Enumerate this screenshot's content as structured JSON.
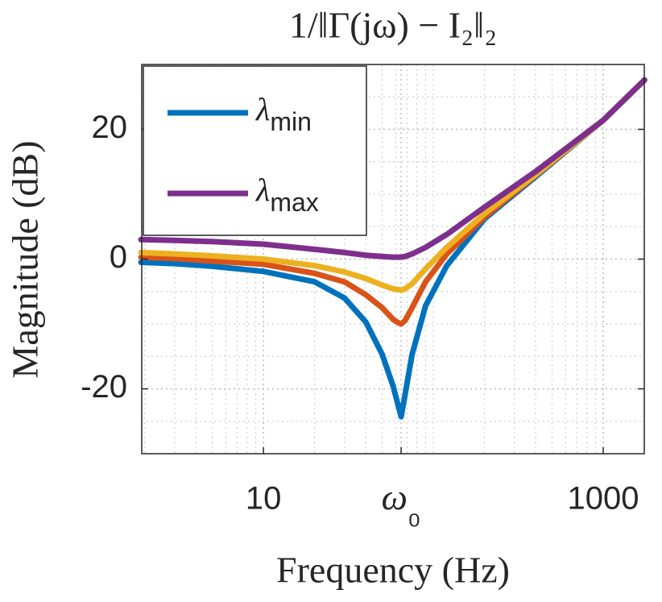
{
  "chart_data": {
    "type": "line",
    "title": "1/‖Γ(jω) − I₂‖₂",
    "xlabel": "Frequency (Hz)",
    "ylabel": "Magnitude (dB)",
    "xscale": "log",
    "grid": true,
    "legend": "upper left",
    "x": [
      1.9,
      3,
      5,
      10,
      20,
      30,
      40,
      50,
      58,
      62,
      64.6,
      68,
      75,
      90,
      120,
      200,
      400,
      1000,
      1750
    ],
    "series": [
      {
        "name": "λmin",
        "color": "#0072bd",
        "values": [
          -0.5,
          -0.7,
          -1.1,
          -1.9,
          -3.5,
          -6,
          -9.7,
          -14.7,
          -19.6,
          -22.5,
          -24.3,
          -21,
          -14.7,
          -7.2,
          -1,
          6.2,
          12.7,
          21.4,
          27.6
        ]
      },
      {
        "color": "#d95319",
        "values": [
          0.3,
          0.1,
          -0.3,
          -0.8,
          -2.2,
          -3.5,
          -5.5,
          -7.5,
          -9.3,
          -9.8,
          -10,
          -9.5,
          -7.5,
          -3.5,
          0.8,
          6.5,
          12.9,
          21.4,
          27.6
        ]
      },
      {
        "color": "#edb120",
        "values": [
          1,
          0.8,
          0.5,
          0,
          -1,
          -2,
          -3,
          -4,
          -4.6,
          -4.7,
          -4.8,
          -4.6,
          -3.8,
          -1.5,
          1.8,
          7,
          13,
          21.4,
          27.6
        ]
      },
      {
        "name": "λmax",
        "color": "#7e2f8e",
        "values": [
          3,
          2.9,
          2.7,
          2.3,
          1.5,
          1,
          0.6,
          0.4,
          0.3,
          0.3,
          0.3,
          0.4,
          0.8,
          1.8,
          3.8,
          8,
          13.5,
          21.4,
          27.6
        ]
      }
    ],
    "xlim": [
      1.92,
      1745
    ],
    "xticks": [
      10,
      {
        "value": 64.6,
        "label": "ω₀"
      },
      1000
    ],
    "ylim": [
      -30,
      30
    ],
    "yticks": [
      -20,
      0,
      20
    ]
  }
}
